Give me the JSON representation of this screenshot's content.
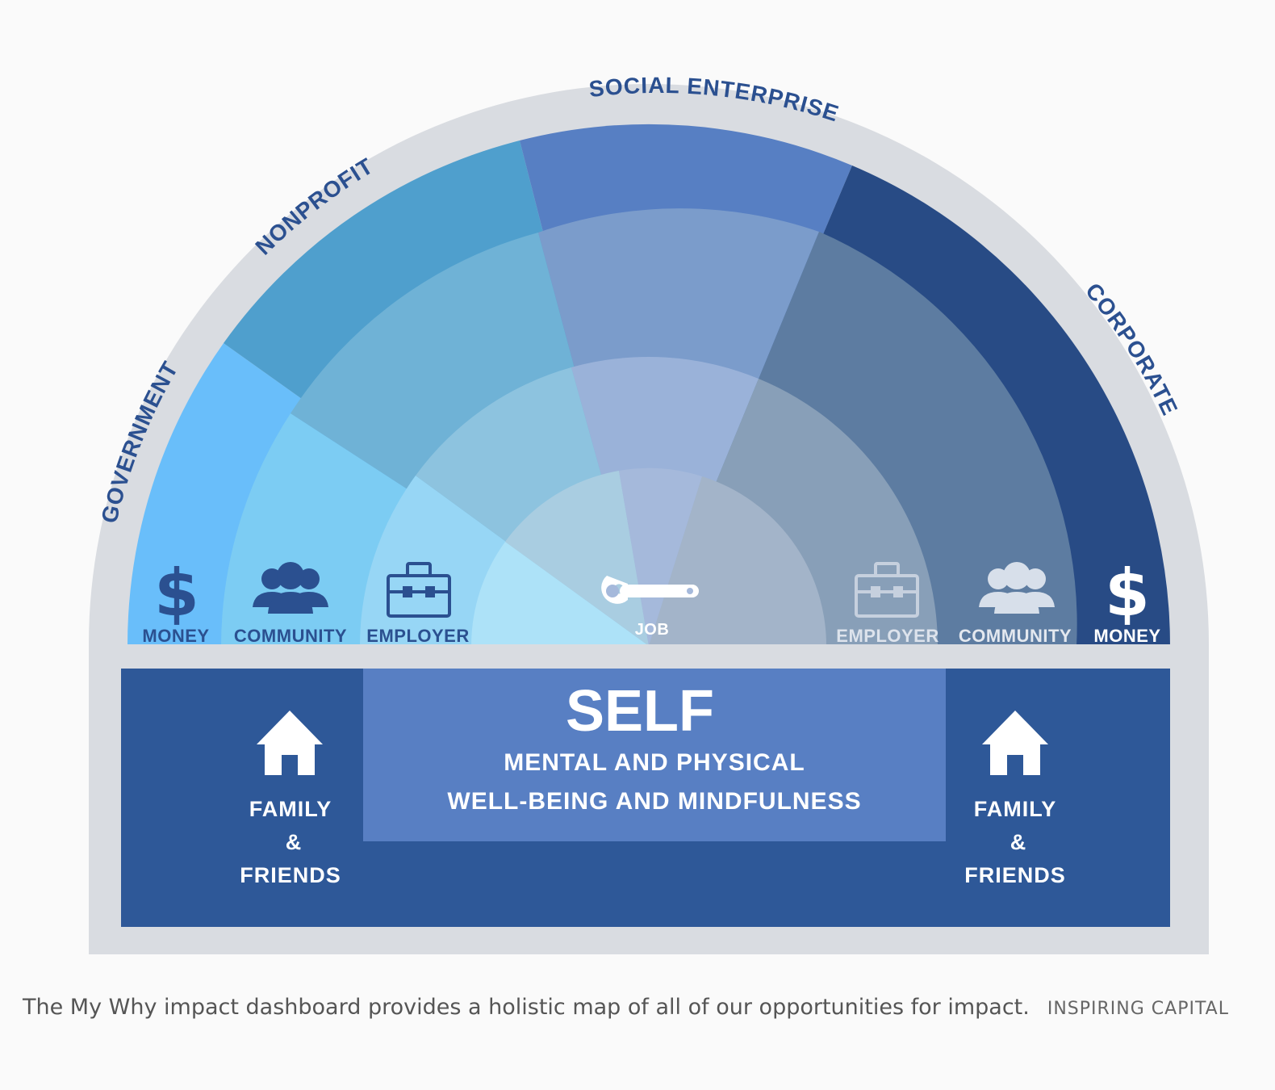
{
  "sectors": {
    "government": "GOVERNMENT",
    "nonprofit": "NONPROFIT",
    "social_enterprise": "SOCIAL ENTERPRISE",
    "corporate": "CORPORATE"
  },
  "rings": {
    "left": {
      "money": "MONEY",
      "community": "COMMUNITY",
      "employer": "EMPLOYER"
    },
    "center": {
      "job": "JOB"
    },
    "right": {
      "employer": "EMPLOYER",
      "community": "COMMUNITY",
      "money": "MONEY"
    }
  },
  "self": {
    "title": "SELF",
    "line1": "MENTAL AND PHYSICAL",
    "line2": "WELL-BEING AND MINDFULNESS"
  },
  "family": {
    "left": {
      "line1": "FAMILY",
      "line2": "&",
      "line3": "FRIENDS"
    },
    "right": {
      "line1": "FAMILY",
      "line2": "&",
      "line3": "FRIENDS"
    }
  },
  "caption": {
    "text": "The My Why impact dashboard provides a holistic map of all of our opportunities for impact.",
    "credit": "INSPIRING CAPITAL"
  },
  "colors": {
    "frame": "#d9dce1",
    "government": "#69befa",
    "nonprofit": "#4f9fcd",
    "social_enterprise": "#577fc3",
    "corporate": "#284b85",
    "self_bar": "#2e5898",
    "self_panel": "#587fc3",
    "label_blue": "#2b5090"
  },
  "icons": {
    "money": "dollar-sign-icon",
    "community": "people-group-icon",
    "employer": "briefcase-icon",
    "job": "wrench-icon",
    "home": "house-icon"
  }
}
